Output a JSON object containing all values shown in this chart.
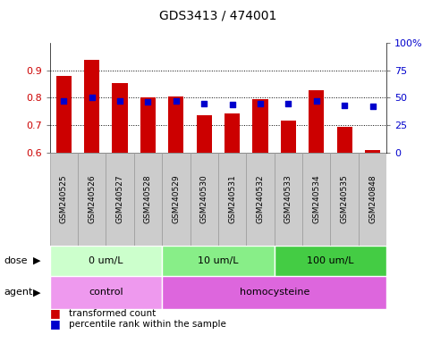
{
  "title": "GDS3413 / 474001",
  "samples": [
    "GSM240525",
    "GSM240526",
    "GSM240527",
    "GSM240528",
    "GSM240529",
    "GSM240530",
    "GSM240531",
    "GSM240532",
    "GSM240533",
    "GSM240534",
    "GSM240535",
    "GSM240848"
  ],
  "bar_values": [
    0.878,
    0.937,
    0.855,
    0.8,
    0.805,
    0.735,
    0.743,
    0.795,
    0.718,
    0.828,
    0.695,
    0.61
  ],
  "dot_values": [
    0.79,
    0.8,
    0.788,
    0.785,
    0.79,
    0.778,
    0.777,
    0.778,
    0.778,
    0.79,
    0.772,
    0.77
  ],
  "bar_color": "#cc0000",
  "dot_color": "#0000cc",
  "bar_bottom": 0.6,
  "ylim_left": [
    0.6,
    1.0
  ],
  "ylim_right": [
    0,
    100
  ],
  "yticks_left": [
    0.6,
    0.7,
    0.8,
    0.9
  ],
  "ytick_left_labels": [
    "0.6",
    "0.7",
    "0.8",
    "0.9"
  ],
  "yticks_right": [
    0,
    25,
    50,
    75,
    100
  ],
  "ytick_right_labels": [
    "0",
    "25",
    "50",
    "75",
    "100%"
  ],
  "dose_groups": [
    {
      "label": "0 um/L",
      "start": 0,
      "end": 4,
      "color": "#ccffcc"
    },
    {
      "label": "10 um/L",
      "start": 4,
      "end": 8,
      "color": "#88ee88"
    },
    {
      "label": "100 um/L",
      "start": 8,
      "end": 12,
      "color": "#44cc44"
    }
  ],
  "agent_groups": [
    {
      "label": "control",
      "start": 0,
      "end": 4,
      "color": "#ee99ee"
    },
    {
      "label": "homocysteine",
      "start": 4,
      "end": 12,
      "color": "#dd66dd"
    }
  ],
  "legend_bar_label": "transformed count",
  "legend_dot_label": "percentile rank within the sample",
  "label_color_left": "#cc0000",
  "label_color_right": "#0000cc",
  "sample_box_color": "#cccccc",
  "sample_box_edgecolor": "#999999"
}
